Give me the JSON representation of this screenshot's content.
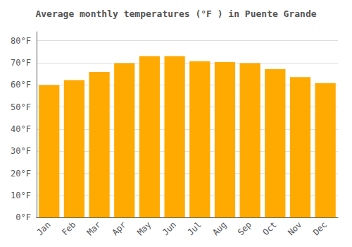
{
  "chart_data": {
    "type": "bar",
    "title": "Average monthly temperatures (°F ) in Puente Grande",
    "categories": [
      "Jan",
      "Feb",
      "Mar",
      "Apr",
      "May",
      "Jun",
      "Jul",
      "Aug",
      "Sep",
      "Oct",
      "Nov",
      "Dec"
    ],
    "values": [
      59.9,
      62.1,
      65.8,
      69.8,
      73.0,
      73.0,
      70.7,
      70.3,
      69.8,
      67.1,
      63.5,
      60.8
    ],
    "color": "#FFAA00",
    "ylim": [
      0,
      84
    ],
    "yticks": [
      {
        "value": 0,
        "label": "0°F"
      },
      {
        "value": 10,
        "label": "10°F"
      },
      {
        "value": 20,
        "label": "20°F"
      },
      {
        "value": 30,
        "label": "30°F"
      },
      {
        "value": 40,
        "label": "40°F"
      },
      {
        "value": 50,
        "label": "50°F"
      },
      {
        "value": 60,
        "label": "60°F"
      },
      {
        "value": 70,
        "label": "70°F"
      },
      {
        "value": 80,
        "label": "80°F"
      }
    ],
    "grid": true
  }
}
